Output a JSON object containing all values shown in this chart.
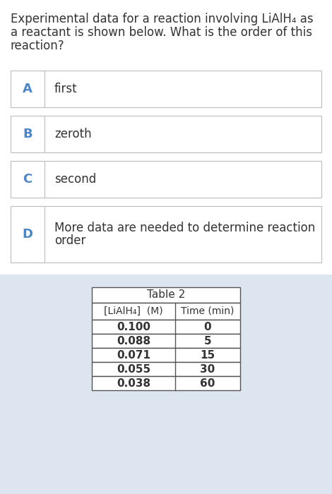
{
  "question_lines": [
    "Experimental data for a reaction involving LiAlH₄ as",
    "a reactant is shown below. What is the order of this",
    "reaction?"
  ],
  "options": [
    {
      "label": "A",
      "text": "first",
      "multiline": false
    },
    {
      "label": "B",
      "text": "zeroth",
      "multiline": false
    },
    {
      "label": "C",
      "text": "second",
      "multiline": false
    },
    {
      "label": "D",
      "text": "More data are needed to determine reaction\norder",
      "multiline": true
    }
  ],
  "table_title": "Table 2",
  "table_col1_header": "[LiAlH₄]  (M)",
  "table_col2_header": "Time (min)",
  "table_data": [
    [
      "0.100",
      "0"
    ],
    [
      "0.088",
      "5"
    ],
    [
      "0.071",
      "15"
    ],
    [
      "0.055",
      "30"
    ],
    [
      "0.038",
      "60"
    ]
  ],
  "bg_color": "#ffffff",
  "table_bg_color": "#dde6f0",
  "option_border_color": "#bbbbbb",
  "label_color": "#4a86c8",
  "text_color": "#333333",
  "question_font_size": 12,
  "option_font_size": 12,
  "label_font_size": 13,
  "table_font_size": 10,
  "table_header_font_size": 10
}
